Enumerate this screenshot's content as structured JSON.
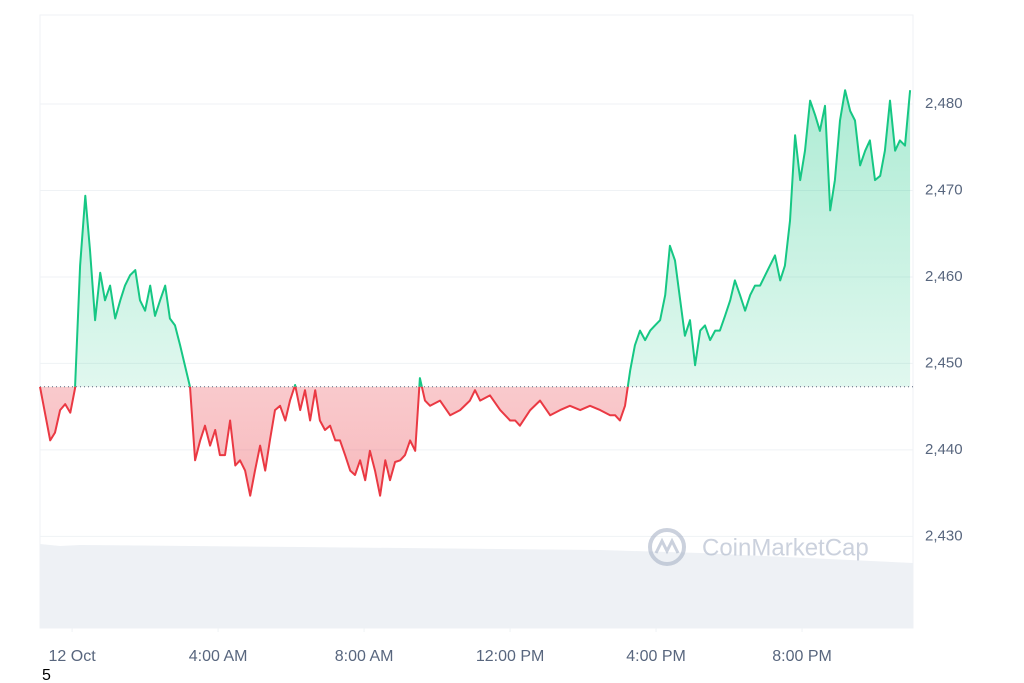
{
  "chart_data": {
    "type": "line",
    "x": [
      -0.88,
      -0.6,
      -0.47,
      -0.33,
      -0.19,
      -0.05,
      0.08,
      0.22,
      0.36,
      0.49,
      0.63,
      0.77,
      0.9,
      1.04,
      1.18,
      1.32,
      1.45,
      1.59,
      1.73,
      1.86,
      2.0,
      2.14,
      2.27,
      2.41,
      2.55,
      2.68,
      2.82,
      2.96,
      3.23,
      3.37,
      3.51,
      3.64,
      3.78,
      3.92,
      4.05,
      4.19,
      4.33,
      4.47,
      4.6,
      4.74,
      4.88,
      5.01,
      5.15,
      5.29,
      5.42,
      5.56,
      5.7,
      5.84,
      5.97,
      6.11,
      6.25,
      6.38,
      6.52,
      6.66,
      6.79,
      6.93,
      7.07,
      7.21,
      7.34,
      7.48,
      7.62,
      7.75,
      7.89,
      8.03,
      8.16,
      8.3,
      8.44,
      8.58,
      8.71,
      8.85,
      8.99,
      9.12,
      9.26,
      9.4,
      9.53,
      9.67,
      9.81,
      10.08,
      10.36,
      10.63,
      10.9,
      11.04,
      11.18,
      11.45,
      11.73,
      12.0,
      12.14,
      12.27,
      12.55,
      12.82,
      13.1,
      13.37,
      13.64,
      13.92,
      14.19,
      14.47,
      14.74,
      14.88,
      15.01,
      15.15,
      15.29,
      15.42,
      15.56,
      15.7,
      15.84,
      15.97,
      16.11,
      16.25,
      16.38,
      16.52,
      16.66,
      16.79,
      16.93,
      17.07,
      17.21,
      17.34,
      17.48,
      17.62,
      17.75,
      17.89,
      18.03,
      18.16,
      18.3,
      18.44,
      18.58,
      18.71,
      18.85,
      18.99,
      19.12,
      19.26,
      19.4,
      19.53,
      19.67,
      19.81,
      19.95,
      20.08,
      20.22,
      20.36,
      20.49,
      20.63,
      20.77,
      20.9,
      21.04,
      21.18,
      21.32,
      21.45,
      21.59,
      21.73,
      21.86,
      22.0,
      22.14,
      22.27,
      22.41,
      22.55,
      22.68,
      22.82,
      22.96
    ],
    "series": [
      {
        "color": "#16c784",
        "negative_color": "#ea3943",
        "values": [
          2447.3,
          2441.1,
          2442.0,
          2444.6,
          2445.3,
          2444.3,
          2447.1,
          2461.3,
          2469.4,
          2463.1,
          2455.0,
          2460.5,
          2457.3,
          2459.0,
          2455.2,
          2457.3,
          2459.0,
          2460.2,
          2460.8,
          2457.3,
          2456.1,
          2459.0,
          2455.5,
          2457.3,
          2459.0,
          2455.2,
          2454.4,
          2452.1,
          2447.3,
          2438.8,
          2441.1,
          2442.8,
          2440.5,
          2442.3,
          2439.4,
          2439.4,
          2443.4,
          2438.2,
          2438.8,
          2437.6,
          2434.7,
          2437.6,
          2440.5,
          2437.6,
          2441.1,
          2444.6,
          2445.1,
          2443.4,
          2445.7,
          2447.5,
          2444.6,
          2446.9,
          2443.4,
          2446.9,
          2443.4,
          2442.3,
          2442.8,
          2441.1,
          2441.1,
          2439.4,
          2437.6,
          2437.1,
          2438.8,
          2436.5,
          2439.9,
          2437.6,
          2434.7,
          2438.8,
          2436.5,
          2438.6,
          2438.8,
          2439.4,
          2441.1,
          2439.9,
          2448.3,
          2445.7,
          2445.1,
          2445.7,
          2444.0,
          2444.6,
          2445.7,
          2446.9,
          2445.7,
          2446.3,
          2444.6,
          2443.4,
          2443.4,
          2442.8,
          2444.6,
          2445.7,
          2444.0,
          2444.6,
          2445.1,
          2444.6,
          2445.1,
          2444.6,
          2444.0,
          2444.0,
          2443.4,
          2445.1,
          2449.2,
          2452.1,
          2453.8,
          2452.7,
          2453.8,
          2454.4,
          2455.0,
          2457.9,
          2463.6,
          2461.9,
          2457.3,
          2453.2,
          2455.0,
          2449.8,
          2453.8,
          2454.4,
          2452.7,
          2453.8,
          2453.8,
          2455.5,
          2457.3,
          2459.6,
          2457.9,
          2456.1,
          2457.9,
          2459.0,
          2459.0,
          2460.2,
          2461.3,
          2462.5,
          2459.6,
          2461.3,
          2466.5,
          2476.4,
          2471.2,
          2474.6,
          2480.4,
          2478.7,
          2476.9,
          2479.8,
          2467.7,
          2471.2,
          2478.1,
          2481.6,
          2479.2,
          2478.1,
          2472.9,
          2474.6,
          2475.8,
          2471.2,
          2471.7,
          2474.6,
          2480.4,
          2474.6,
          2475.8,
          2475.2,
          2481.6
        ]
      }
    ],
    "baseline": 2447.3,
    "xlim": [
      -0.88,
      23.04
    ],
    "xticks": [
      {
        "value": 0,
        "label": "12 Oct"
      },
      {
        "value": 4,
        "label": "4:00 AM"
      },
      {
        "value": 8,
        "label": "8:00 AM"
      },
      {
        "value": 12,
        "label": "12:00 PM"
      },
      {
        "value": 16,
        "label": "4:00 PM"
      },
      {
        "value": 20,
        "label": "8:00 PM"
      }
    ],
    "ylim": [
      2419.4,
      2490.3
    ],
    "yticks": [
      {
        "value": 2430,
        "label": "2,430"
      },
      {
        "value": 2440,
        "label": "2,440"
      },
      {
        "value": 2450,
        "label": "2,450"
      },
      {
        "value": 2460,
        "label": "2,460"
      },
      {
        "value": 2470,
        "label": "2,470"
      },
      {
        "value": 2480,
        "label": "2,480"
      }
    ],
    "grid": true,
    "watermark": "CoinMarketCap",
    "footnote": "5"
  }
}
